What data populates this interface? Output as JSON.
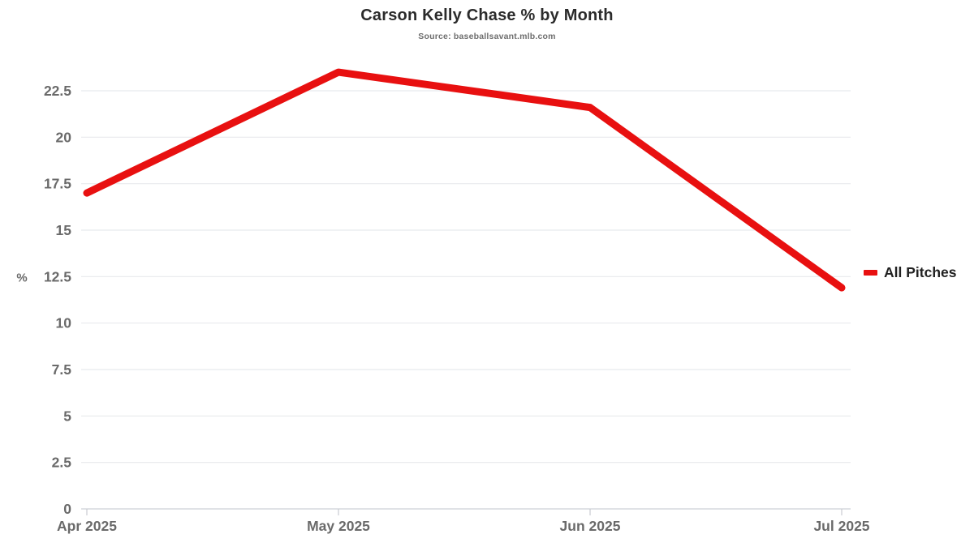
{
  "chart_data": {
    "type": "line",
    "title": "Carson Kelly Chase % by Month",
    "subtitle": "Source: baseballsavant.mlb.com",
    "x": [
      "Apr 2025",
      "May 2025",
      "Jun 2025",
      "Jul 2025"
    ],
    "series": [
      {
        "name": "All Pitches",
        "values": [
          17.0,
          23.5,
          21.6,
          11.9
        ],
        "color": "#e81010"
      }
    ],
    "ylabel": "%",
    "ylim": [
      0,
      24
    ],
    "yticks": [
      0,
      2.5,
      5,
      7.5,
      10,
      12.5,
      15,
      17.5,
      20,
      22.5
    ],
    "grid": true,
    "legend_position": "right",
    "colors": {
      "line": "#e81010",
      "gridline": "#e8eaed",
      "axis_line": "#d5d8dd",
      "tick_mark": "#c9ccd1",
      "tick_label": "#6a6a6a",
      "title_text": "#2b2b2b",
      "subtitle_text": "#6e6e6e",
      "legend_text": "#212121"
    }
  },
  "legend": {
    "label": "All Pitches"
  }
}
